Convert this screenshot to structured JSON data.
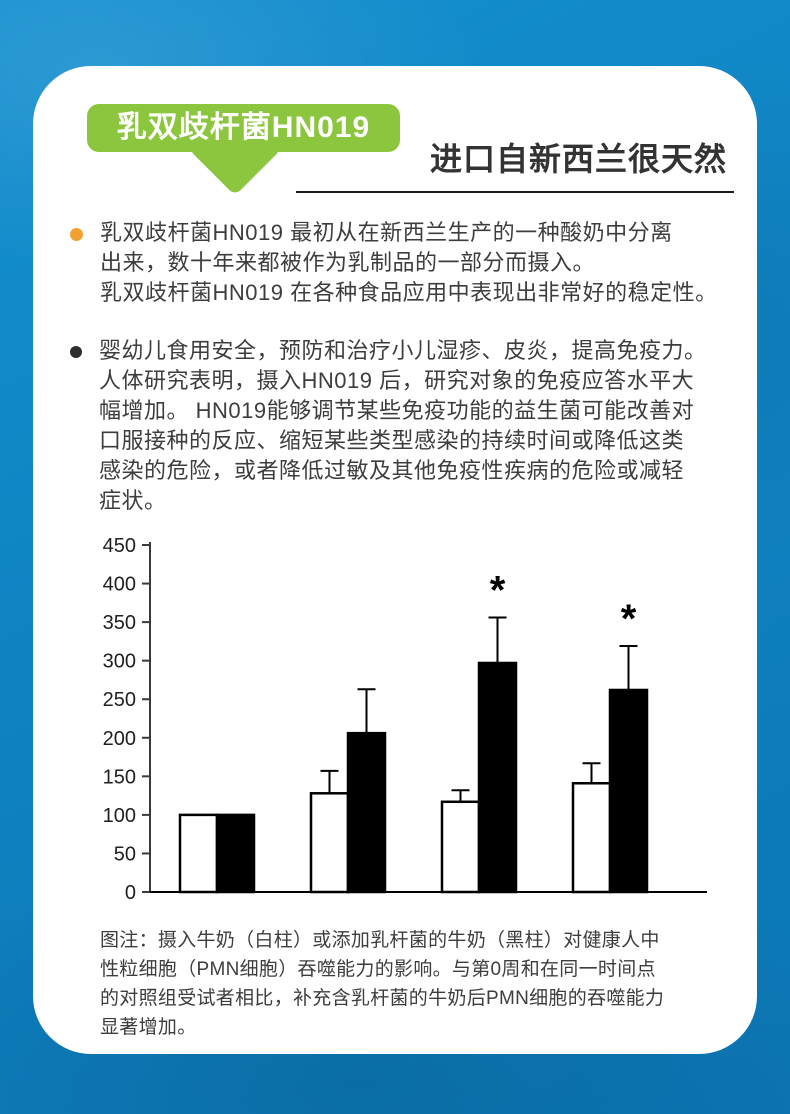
{
  "badge": {
    "label": "乳双歧杆菌HN019"
  },
  "header": {
    "title": "进口自新西兰很天然"
  },
  "bullets": [
    {
      "marker_color": "#f0a132",
      "lines": [
        "乳双歧杆菌HN019 最初从在新西兰生产的一种酸奶中分离",
        "出来，数十年来都被作为乳制品的一部分而摄入。",
        "乳双歧杆菌HN019 在各种食品应用中表现出非常好的稳定性。"
      ]
    },
    {
      "marker_color": "#2e2e2e",
      "lines": [
        "婴幼儿食用安全，预防和治疗小儿湿疹、皮炎，提高免疫力。",
        "人体研究表明，摄入HN019 后，研究对象的免疫应答水平大",
        "幅增加。 HN019能够调节某些免疫功能的益生菌可能改善对",
        "口服接种的反应、缩短某些类型感染的持续时间或降低这类",
        "感染的危险，或者降低过敏及其他免疫性疾病的危险或减轻",
        "症状。"
      ]
    }
  ],
  "chart_data": {
    "type": "bar",
    "title": "",
    "xlabel": "",
    "ylabel": "",
    "n_groups": 4,
    "categories": [
      "",
      "",
      "",
      ""
    ],
    "ylim": [
      0,
      450
    ],
    "ytick_step": 50,
    "yticks": [
      0,
      50,
      100,
      150,
      200,
      250,
      300,
      350,
      400,
      450
    ],
    "grid": false,
    "legend_position": "none",
    "significance_marker": "*",
    "series": [
      {
        "name": "牛奶（白柱）",
        "fill": "#ffffff",
        "stroke": "#000000",
        "values": [
          100,
          128,
          117,
          141
        ],
        "errors_up": [
          0,
          29,
          15,
          26
        ],
        "significance": [
          false,
          false,
          false,
          false
        ]
      },
      {
        "name": "添加乳杆菌的牛奶（黑柱）",
        "fill": "#000000",
        "stroke": "#000000",
        "values": [
          100,
          206,
          297,
          262
        ],
        "errors_up": [
          0,
          57,
          59,
          57
        ],
        "significance": [
          false,
          false,
          true,
          true
        ]
      }
    ]
  },
  "caption": {
    "lines": [
      "图注：摄入牛奶（白柱）或添加乳杆菌的牛奶（黑柱）对健康人中",
      "性粒细胞（PMN细胞）吞噬能力的影响。与第0周和在同一时间点",
      "的对照组受试者相比，补充含乳杆菌的牛奶后PMN细胞的吞噬能力",
      "显著增加。"
    ]
  },
  "colors": {
    "background_blue": "#0e7fc0",
    "card_white": "#ffffff",
    "badge_green": "#8cc63e",
    "bullet_orange": "#f0a132",
    "text_dark": "#3d3d3d",
    "title_dark": "#333333",
    "bar_black": "#000000",
    "bar_white": "#ffffff"
  }
}
